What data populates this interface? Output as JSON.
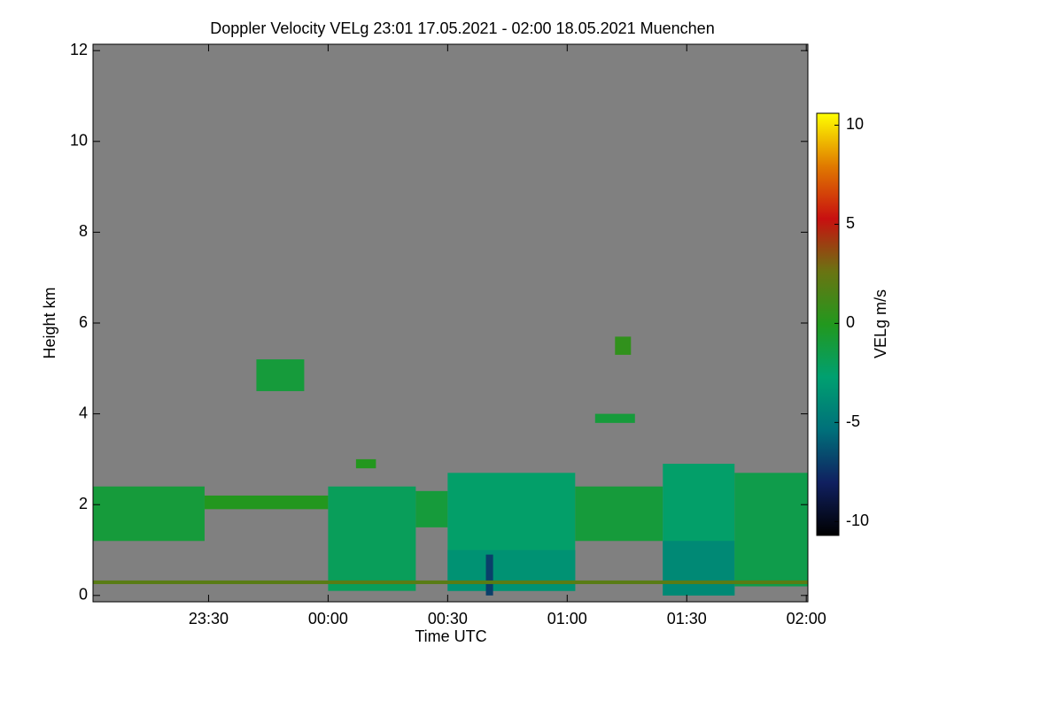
{
  "chart_data": {
    "type": "heatmap",
    "title": "Doppler Velocity VELg   23:01 17.05.2021 - 02:00 18.05.2021 Muenchen",
    "x_label": "Time UTC",
    "y_label": "Height km",
    "colorbar_label": "VELg m/s",
    "xlim": [
      1,
      180.4
    ],
    "xticks": [
      {
        "value": 30,
        "label": "23:30"
      },
      {
        "value": 60,
        "label": "00:00"
      },
      {
        "value": 90,
        "label": "00:30"
      },
      {
        "value": 120,
        "label": "01:00"
      },
      {
        "value": 150,
        "label": "01:30"
      },
      {
        "value": 180,
        "label": "02:00"
      }
    ],
    "ylim": [
      -0.14,
      12.14
    ],
    "yticks": [
      0,
      2,
      4,
      6,
      8,
      10,
      12
    ],
    "zlim": [
      -10.7,
      10.6
    ],
    "zticks": [
      -10,
      -5,
      0,
      5,
      10
    ],
    "background": "#808080",
    "colormap": [
      "#000000",
      "#102060",
      "#00707a",
      "#00a070",
      "#22981e",
      "#6a7412",
      "#c81010",
      "#e07a00",
      "#ffff00"
    ],
    "cells": [
      {
        "x": [
          1,
          29
        ],
        "y": [
          1.2,
          2.4
        ],
        "value": -1
      },
      {
        "x": [
          29,
          60
        ],
        "y": [
          1.9,
          2.2
        ],
        "value": 0
      },
      {
        "x": [
          42,
          54
        ],
        "y": [
          4.5,
          5.2
        ],
        "value": -1
      },
      {
        "x": [
          60,
          82
        ],
        "y": [
          0.1,
          2.4
        ],
        "value": -2
      },
      {
        "x": [
          67,
          72
        ],
        "y": [
          2.8,
          3.0
        ],
        "value": 0
      },
      {
        "x": [
          82,
          90
        ],
        "y": [
          1.5,
          2.3
        ],
        "value": -1
      },
      {
        "x": [
          90,
          122
        ],
        "y": [
          0.1,
          2.7
        ],
        "value": -2.5
      },
      {
        "x": [
          90,
          122
        ],
        "y": [
          0.1,
          1.0
        ],
        "value": -3.5
      },
      {
        "x": [
          99.6,
          101.4
        ],
        "y": [
          0,
          0.9
        ],
        "value": -7
      },
      {
        "x": [
          122,
          144
        ],
        "y": [
          1.2,
          2.4
        ],
        "value": -1
      },
      {
        "x": [
          127,
          137
        ],
        "y": [
          3.8,
          4.0
        ],
        "value": -1
      },
      {
        "x": [
          132,
          136
        ],
        "y": [
          5.3,
          5.7
        ],
        "value": 0.5
      },
      {
        "x": [
          144,
          162
        ],
        "y": [
          0,
          2.9
        ],
        "value": -2.5
      },
      {
        "x": [
          144,
          162
        ],
        "y": [
          0,
          1.2
        ],
        "value": -4
      },
      {
        "x": [
          162,
          180.4
        ],
        "y": [
          0.2,
          2.7
        ],
        "value": -1.5
      },
      {
        "x": [
          1,
          180.4
        ],
        "y": [
          0.25,
          0.33
        ],
        "value": 2
      }
    ]
  }
}
